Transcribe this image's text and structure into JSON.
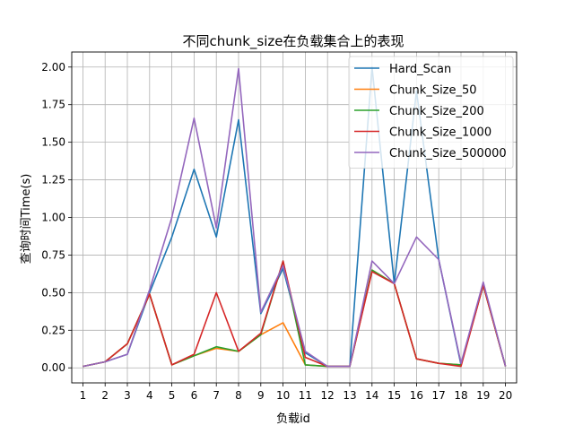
{
  "chart_data": {
    "type": "line",
    "title": "不同chunk_size在负载集合上的表现",
    "xlabel": "负载id",
    "ylabel": "查询时间Time(s)",
    "x": [
      1,
      2,
      3,
      4,
      5,
      6,
      7,
      8,
      9,
      10,
      11,
      12,
      13,
      14,
      15,
      16,
      17,
      18,
      19,
      20
    ],
    "xlim": [
      0.5,
      20.5
    ],
    "ylim": [
      -0.1,
      2.1
    ],
    "yticks": [
      "0.00",
      "0.25",
      "0.50",
      "0.75",
      "1.00",
      "1.25",
      "1.50",
      "1.75",
      "2.00"
    ],
    "grid": true,
    "legend_position": "top-right",
    "series": [
      {
        "name": "Hard_Scan",
        "color": "#1f77b4",
        "values": [
          0.01,
          0.04,
          0.09,
          0.5,
          0.87,
          1.32,
          0.87,
          1.65,
          0.36,
          0.66,
          0.1,
          0.01,
          0.01,
          2.0,
          0.56,
          1.84,
          0.72,
          0.02,
          0.56,
          0.01
        ]
      },
      {
        "name": "Chunk_Size_50",
        "color": "#ff7f0e",
        "values": [
          0.01,
          0.04,
          0.16,
          0.49,
          0.02,
          0.08,
          0.13,
          0.11,
          0.22,
          0.3,
          0.02,
          0.01,
          0.01,
          0.65,
          0.56,
          0.06,
          0.03,
          0.02,
          0.55,
          0.01
        ]
      },
      {
        "name": "Chunk_Size_200",
        "color": "#2ca02c",
        "values": [
          0.01,
          0.04,
          0.16,
          0.49,
          0.02,
          0.08,
          0.14,
          0.11,
          0.22,
          0.71,
          0.02,
          0.01,
          0.01,
          0.65,
          0.56,
          0.06,
          0.03,
          0.02,
          0.55,
          0.01
        ]
      },
      {
        "name": "Chunk_Size_1000",
        "color": "#d62728",
        "values": [
          0.01,
          0.04,
          0.16,
          0.49,
          0.02,
          0.09,
          0.5,
          0.11,
          0.23,
          0.71,
          0.07,
          0.01,
          0.01,
          0.64,
          0.56,
          0.06,
          0.03,
          0.01,
          0.55,
          0.01
        ]
      },
      {
        "name": "Chunk_Size_500000",
        "color": "#9467bd",
        "values": [
          0.01,
          0.04,
          0.09,
          0.52,
          1.0,
          1.66,
          0.93,
          1.99,
          0.37,
          0.68,
          0.11,
          0.01,
          0.01,
          0.71,
          0.56,
          0.87,
          0.72,
          0.03,
          0.57,
          0.01
        ]
      }
    ]
  }
}
